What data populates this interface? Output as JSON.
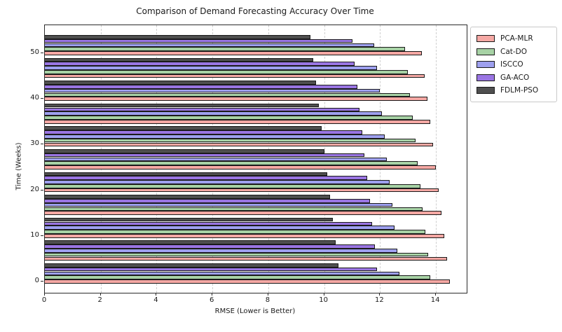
{
  "chart_data": {
    "type": "bar",
    "orientation": "horizontal",
    "title": "Comparison of Demand Forecasting Accuracy Over Time",
    "xlabel": "RMSE (Lower is Better)",
    "ylabel": "Time (Weeks)",
    "xlim": [
      0,
      15.1
    ],
    "xticks": [
      0,
      2,
      4,
      6,
      8,
      10,
      12,
      14
    ],
    "yticks": [
      0,
      10,
      20,
      30,
      40,
      50
    ],
    "grid": "vertical-dashed",
    "grid_color": "#cfcfcf",
    "legend_position": "outside-upper-right",
    "bar_edge_color": "#1a1a1a",
    "categories_weeks": [
      0,
      5,
      10,
      15,
      20,
      25,
      30,
      35,
      40,
      45,
      50
    ],
    "series": [
      {
        "name": "PCA-MLR",
        "color": "#F5A8A4",
        "values": [
          14.5,
          14.4,
          14.3,
          14.2,
          14.1,
          14.0,
          13.9,
          13.8,
          13.7,
          13.6,
          13.5
        ]
      },
      {
        "name": "Cat-DO",
        "color": "#A7D2A5",
        "values": [
          13.8,
          13.71,
          13.62,
          13.53,
          13.44,
          13.35,
          13.26,
          13.17,
          13.08,
          12.99,
          12.9
        ]
      },
      {
        "name": "ISCCO",
        "color": "#9EA0EF",
        "values": [
          12.7,
          12.61,
          12.52,
          12.43,
          12.34,
          12.25,
          12.16,
          12.07,
          11.98,
          11.89,
          11.8
        ]
      },
      {
        "name": "GA-ACO",
        "color": "#9A75E3",
        "values": [
          11.9,
          11.81,
          11.72,
          11.63,
          11.54,
          11.45,
          11.36,
          11.27,
          11.18,
          11.09,
          11.0
        ]
      },
      {
        "name": "FDLM-PSO",
        "color": "#4F4F4F",
        "values": [
          10.5,
          10.4,
          10.3,
          10.2,
          10.1,
          10.0,
          9.9,
          9.8,
          9.7,
          9.6,
          9.5
        ]
      }
    ]
  }
}
